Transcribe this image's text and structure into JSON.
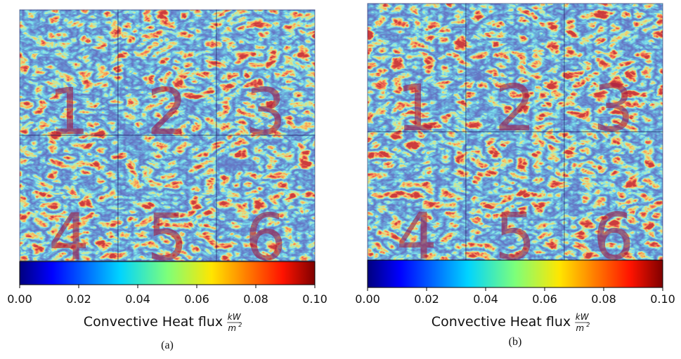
{
  "chart_data": [
    {
      "type": "heatmap",
      "tile_labels": [
        "1",
        "2",
        "3",
        "4",
        "5",
        "6"
      ],
      "colormap": "jet",
      "clim": [
        0,
        0.1
      ],
      "cticks": [
        {
          "value": 0,
          "label": "0.00"
        },
        {
          "value": 0.02,
          "label": "0.02"
        },
        {
          "value": 0.04,
          "label": "0.04"
        },
        {
          "value": 0.06,
          "label": "0.06"
        },
        {
          "value": 0.08,
          "label": "0.08"
        },
        {
          "value": 0.1,
          "label": "0.10"
        }
      ],
      "colorbar_label": "Convective Heat flux",
      "colorbar_unit_numerator": "kW",
      "colorbar_unit_denominator": "m",
      "colorbar_unit_exponent": "2",
      "caption": "(a)"
    },
    {
      "type": "heatmap",
      "tile_labels": [
        "1",
        "2",
        "3",
        "4",
        "5",
        "6"
      ],
      "colormap": "jet",
      "clim": [
        0,
        0.1
      ],
      "cticks": [
        {
          "value": 0,
          "label": "0.00"
        },
        {
          "value": 0.02,
          "label": "0.02"
        },
        {
          "value": 0.04,
          "label": "0.04"
        },
        {
          "value": 0.06,
          "label": "0.06"
        },
        {
          "value": 0.08,
          "label": "0.08"
        },
        {
          "value": 0.1,
          "label": "0.10"
        }
      ],
      "colorbar_label": "Convective Heat flux",
      "colorbar_unit_numerator": "kW",
      "colorbar_unit_denominator": "m",
      "colorbar_unit_exponent": "2",
      "caption": "(b)"
    }
  ]
}
